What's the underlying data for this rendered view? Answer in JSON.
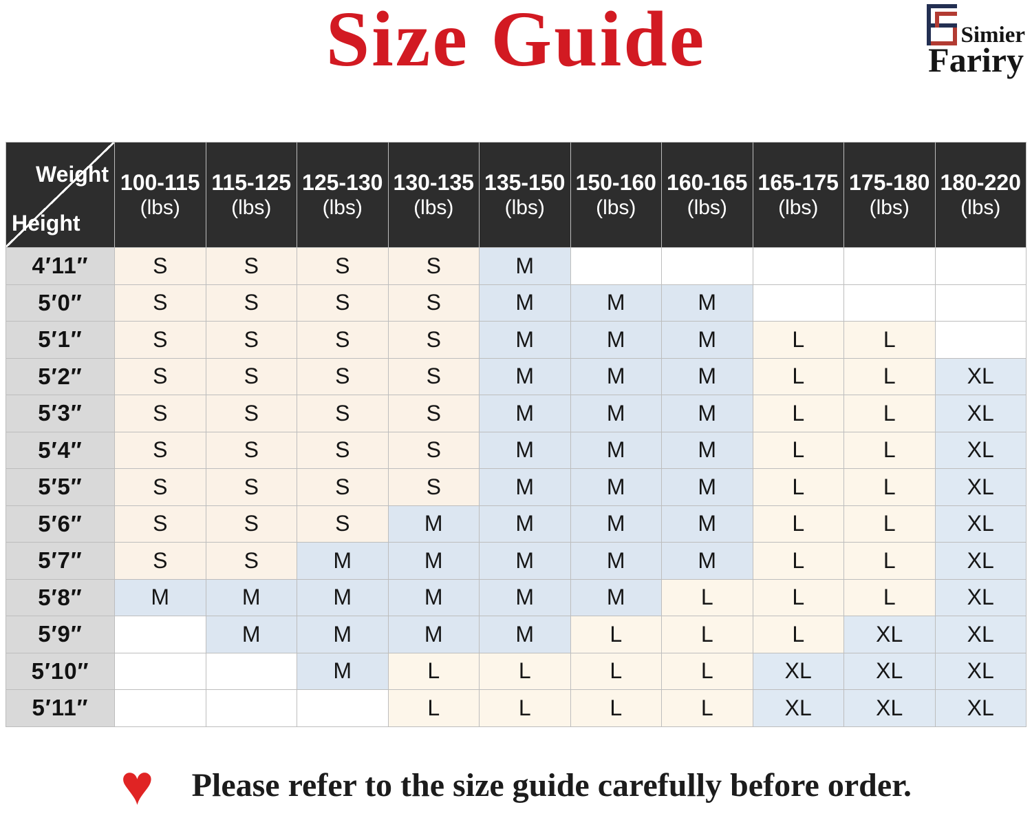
{
  "title": "Size Guide",
  "logo": {
    "brand_top": "Simier",
    "brand_bottom": "Fariry"
  },
  "note": {
    "heart_icon": "♥",
    "text": "Please refer to the size guide carefully before order."
  },
  "table": {
    "corner": {
      "top_label": "Weight",
      "bottom_label": "Height"
    },
    "weight_unit": "(lbs)",
    "weight_ranges": [
      "100-115",
      "115-125",
      "125-130",
      "130-135",
      "135-150",
      "150-160",
      "160-165",
      "165-175",
      "175-180",
      "180-220"
    ],
    "heights": [
      "4′11″",
      "5′0″",
      "5′1″",
      "5′2″",
      "5′3″",
      "5′4″",
      "5′5″",
      "5′6″",
      "5′7″",
      "5′8″",
      "5′9″",
      "5′10″",
      "5′11″"
    ],
    "sizes": [
      [
        "S",
        "S",
        "S",
        "S",
        "M",
        "",
        "",
        "",
        "",
        ""
      ],
      [
        "S",
        "S",
        "S",
        "S",
        "M",
        "M",
        "M",
        "",
        "",
        ""
      ],
      [
        "S",
        "S",
        "S",
        "S",
        "M",
        "M",
        "M",
        "L",
        "L",
        ""
      ],
      [
        "S",
        "S",
        "S",
        "S",
        "M",
        "M",
        "M",
        "L",
        "L",
        "XL"
      ],
      [
        "S",
        "S",
        "S",
        "S",
        "M",
        "M",
        "M",
        "L",
        "L",
        "XL"
      ],
      [
        "S",
        "S",
        "S",
        "S",
        "M",
        "M",
        "M",
        "L",
        "L",
        "XL"
      ],
      [
        "S",
        "S",
        "S",
        "S",
        "M",
        "M",
        "M",
        "L",
        "L",
        "XL"
      ],
      [
        "S",
        "S",
        "S",
        "M",
        "M",
        "M",
        "M",
        "L",
        "L",
        "XL"
      ],
      [
        "S",
        "S",
        "M",
        "M",
        "M",
        "M",
        "M",
        "L",
        "L",
        "XL"
      ],
      [
        "M",
        "M",
        "M",
        "M",
        "M",
        "M",
        "L",
        "L",
        "L",
        "XL"
      ],
      [
        "",
        "M",
        "M",
        "M",
        "M",
        "L",
        "L",
        "L",
        "XL",
        "XL"
      ],
      [
        "",
        "",
        "M",
        "L",
        "L",
        "L",
        "L",
        "XL",
        "XL",
        "XL"
      ],
      [
        "",
        "",
        "",
        "L",
        "L",
        "L",
        "L",
        "XL",
        "XL",
        "XL"
      ]
    ]
  },
  "colors": {
    "title_red": "#d21a22",
    "heart_red": "#e02424",
    "header_bg": "#2d2d2d",
    "header_text": "#ffffff",
    "height_col_bg": "#d9d9d9",
    "grid_line": "#bdbdbd",
    "size_s": "#fbf2e7",
    "size_m": "#dce6f1",
    "size_l": "#fdf6ea",
    "size_xl": "#dfe9f3",
    "empty": "#ffffff",
    "logo_navy": "#232f52",
    "logo_red": "#b23b32"
  },
  "chart_data": {
    "type": "table",
    "title": "Size Guide",
    "column_header": "Weight",
    "row_header": "Height",
    "columns": [
      "100-115 (lbs)",
      "115-125 (lbs)",
      "125-130 (lbs)",
      "130-135 (lbs)",
      "135-150 (lbs)",
      "150-160 (lbs)",
      "160-165 (lbs)",
      "165-175 (lbs)",
      "175-180 (lbs)",
      "180-220 (lbs)"
    ],
    "rows": [
      "4′11″",
      "5′0″",
      "5′1″",
      "5′2″",
      "5′3″",
      "5′4″",
      "5′5″",
      "5′6″",
      "5′7″",
      "5′8″",
      "5′9″",
      "5′10″",
      "5′11″"
    ],
    "values": [
      [
        "S",
        "S",
        "S",
        "S",
        "M",
        "",
        "",
        "",
        "",
        ""
      ],
      [
        "S",
        "S",
        "S",
        "S",
        "M",
        "M",
        "M",
        "",
        "",
        ""
      ],
      [
        "S",
        "S",
        "S",
        "S",
        "M",
        "M",
        "M",
        "L",
        "L",
        ""
      ],
      [
        "S",
        "S",
        "S",
        "S",
        "M",
        "M",
        "M",
        "L",
        "L",
        "XL"
      ],
      [
        "S",
        "S",
        "S",
        "S",
        "M",
        "M",
        "M",
        "L",
        "L",
        "XL"
      ],
      [
        "S",
        "S",
        "S",
        "S",
        "M",
        "M",
        "M",
        "L",
        "L",
        "XL"
      ],
      [
        "S",
        "S",
        "S",
        "S",
        "M",
        "M",
        "M",
        "L",
        "L",
        "XL"
      ],
      [
        "S",
        "S",
        "S",
        "M",
        "M",
        "M",
        "M",
        "L",
        "L",
        "XL"
      ],
      [
        "S",
        "S",
        "M",
        "M",
        "M",
        "M",
        "M",
        "L",
        "L",
        "XL"
      ],
      [
        "M",
        "M",
        "M",
        "M",
        "M",
        "M",
        "L",
        "L",
        "L",
        "XL"
      ],
      [
        "",
        "M",
        "M",
        "M",
        "M",
        "L",
        "L",
        "L",
        "XL",
        "XL"
      ],
      [
        "",
        "",
        "M",
        "L",
        "L",
        "L",
        "L",
        "XL",
        "XL",
        "XL"
      ],
      [
        "",
        "",
        "",
        "L",
        "L",
        "L",
        "L",
        "XL",
        "XL",
        "XL"
      ]
    ],
    "legend": {
      "S": "cream cell",
      "M": "light-blue cell",
      "L": "cream cell",
      "XL": "light-blue cell"
    },
    "layout": "height rows × weight-range columns, grid lines on"
  }
}
